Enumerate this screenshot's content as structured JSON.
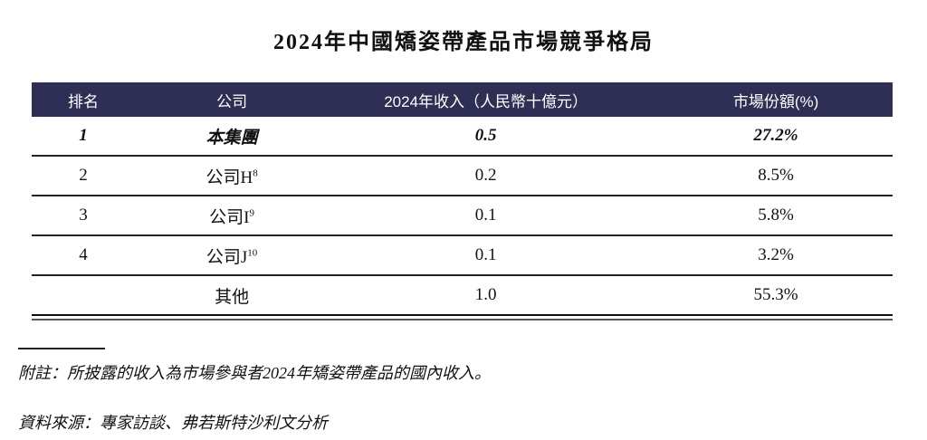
{
  "page": {
    "title": "2024年中國矯姿帶產品市場競爭格局"
  },
  "table": {
    "headers": {
      "rank": "排名",
      "company": "公司",
      "revenue": "2024年收入（人民幣十億元）",
      "share": "市場份額(%)"
    },
    "rows": [
      {
        "rank": "1",
        "company": "本集團",
        "sup": "",
        "revenue": "0.5",
        "share": "27.2%"
      },
      {
        "rank": "2",
        "company": "公司H",
        "sup": "8",
        "revenue": "0.2",
        "share": "8.5%"
      },
      {
        "rank": "3",
        "company": "公司I",
        "sup": "9",
        "revenue": "0.1",
        "share": "5.8%"
      },
      {
        "rank": "4",
        "company": "公司J",
        "sup": "10",
        "revenue": "0.1",
        "share": "3.2%"
      },
      {
        "rank": "",
        "company": "其他",
        "sup": "",
        "revenue": "1.0",
        "share": "55.3%"
      }
    ],
    "colors": {
      "header_bg": "#2f2f55",
      "header_text": "#ffffff",
      "rule": "#222222"
    }
  },
  "notes": {
    "footnote": "附註：所披露的收入為市場參與者2024年矯姿帶產品的國內收入。",
    "source": "資料來源：專家訪談、弗若斯特沙利文分析"
  }
}
